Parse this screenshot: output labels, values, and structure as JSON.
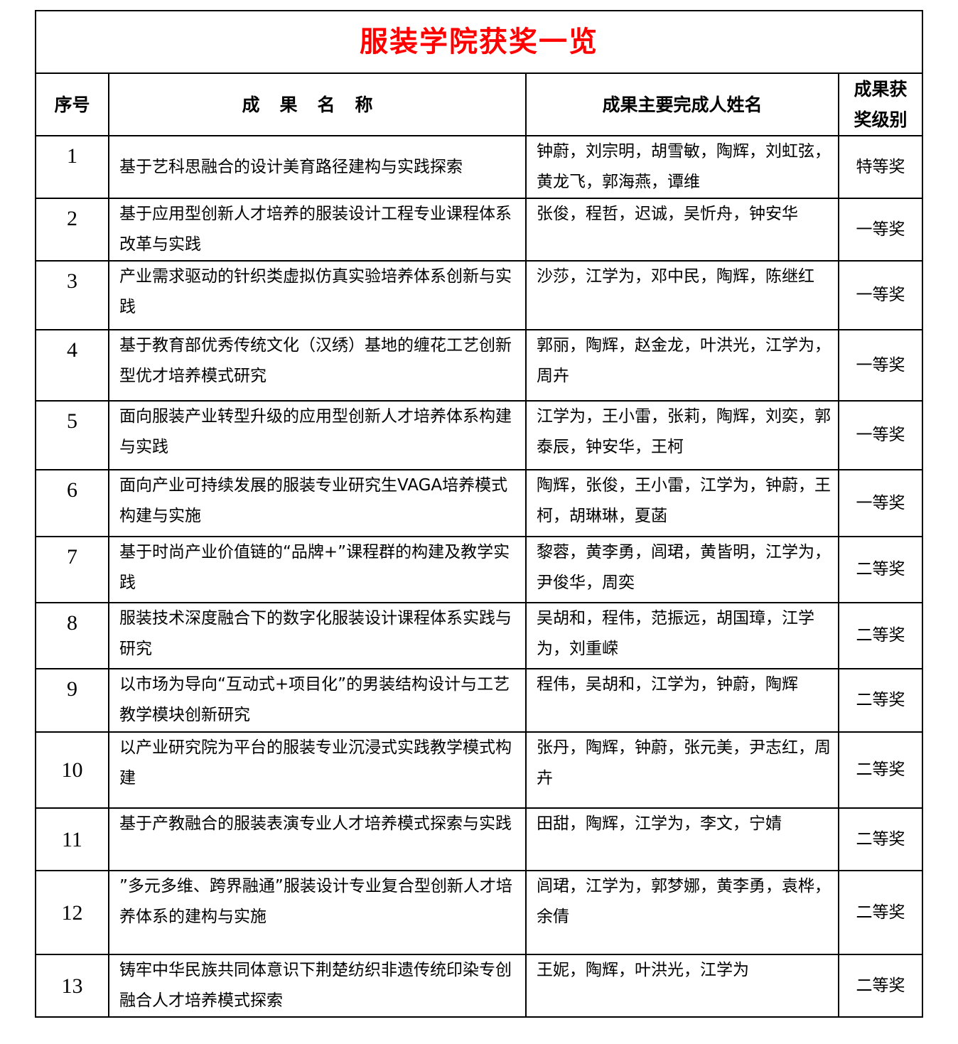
{
  "title": "服装学院获奖一览",
  "headers": {
    "index": "序号",
    "name": "成果名称",
    "people": "成果主要完成人姓名",
    "level": "成果获奖级别"
  },
  "rows": [
    {
      "no": "1",
      "name": "基于艺科思融合的设计美育路径建构与实践探索",
      "people": "钟蔚，刘宗明，胡雪敏，陶辉，刘虹弦，黄龙飞，郭海燕，谭维",
      "level": "特等奖"
    },
    {
      "no": "2",
      "name": "基于应用型创新人才培养的服装设计工程专业课程体系改革与实践",
      "people": "张俊，程哲，迟诚，吴忻舟，钟安华",
      "level": "一等奖"
    },
    {
      "no": "3",
      "name": "产业需求驱动的针织类虚拟仿真实验培养体系创新与实践",
      "people": "沙莎，江学为，邓中民，陶辉，陈继红",
      "level": "一等奖"
    },
    {
      "no": "4",
      "name": "基于教育部优秀传统文化（汉绣）基地的缠花工艺创新型优才培养模式研究",
      "people": "郭丽，陶辉，赵金龙，叶洪光，江学为，周卉",
      "level": "一等奖"
    },
    {
      "no": "5",
      "name": "面向服装产业转型升级的应用型创新人才培养体系构建与实践",
      "people": "江学为，王小雷，张莉，陶辉，刘奕，郭泰辰，钟安华，王柯",
      "level": "一等奖"
    },
    {
      "no": "6",
      "name": "面向产业可持续发展的服装专业研究生VAGA培养模式构建与实施",
      "people": "陶辉，张俊，王小雷，江学为，钟蔚，王柯，胡琳琳，夏菡",
      "level": "一等奖"
    },
    {
      "no": "7",
      "name": "基于时尚产业价值链的“品牌+”课程群的构建及教学实践",
      "people": "黎蓉，黄李勇，闾珺，黄皆明，江学为，尹俊华，周奕",
      "level": "二等奖"
    },
    {
      "no": "8",
      "name": "服装技术深度融合下的数字化服装设计课程体系实践与研究",
      "people": "吴胡和，程伟，范振远，胡国璋，江学为，刘重嵘",
      "level": "二等奖"
    },
    {
      "no": "9",
      "name": "以市场为导向“互动式+项目化”的男装结构设计与工艺教学模块创新研究",
      "people": "程伟，吴胡和，江学为，钟蔚，陶辉",
      "level": "二等奖"
    },
    {
      "no": "10",
      "name": "以产业研究院为平台的服装专业沉浸式实践教学模式构建",
      "people": "张丹，陶辉，钟蔚，张元美，尹志红，周卉",
      "level": "二等奖"
    },
    {
      "no": "11",
      "name": "基于产教融合的服装表演专业人才培养模式探索与实践",
      "people": "田甜，陶辉，江学为，李文，宁婧",
      "level": "二等奖"
    },
    {
      "no": "12",
      "name": "”多元多维、跨界融通”服装设计专业复合型创新人才培养体系的建构与实施",
      "people": "闾珺，江学为，郭梦娜，黄李勇，袁桦，余倩",
      "level": "二等奖"
    },
    {
      "no": "13",
      "name": "铸牢中华民族共同体意识下荆楚纺织非遗传统印染专创融合人才培养模式探索",
      "people": "王妮，陶辉，叶洪光，江学为",
      "level": "二等奖"
    }
  ]
}
